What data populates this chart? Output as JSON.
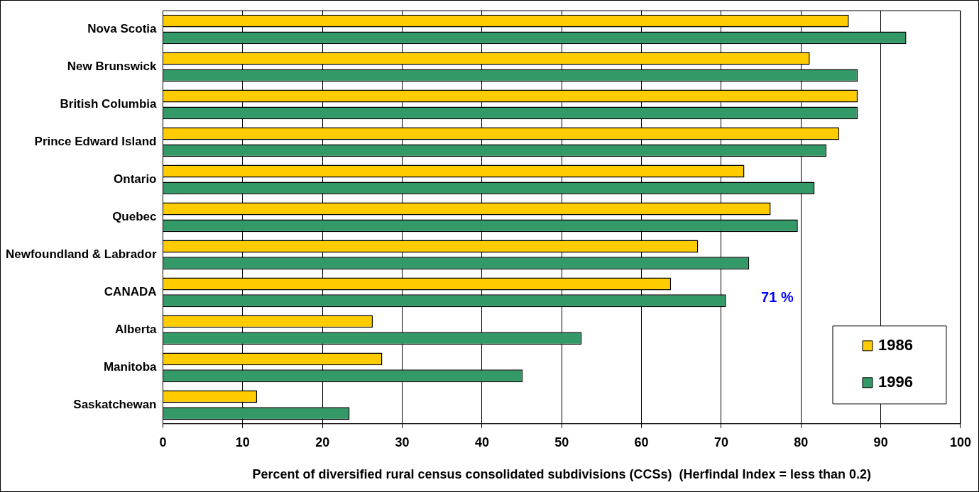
{
  "chart_data": {
    "type": "bar",
    "orientation": "horizontal",
    "xlabel": "Percent of diversified rural census consolidated subdivisions (CCSs)  (Herfindal Index = less than 0.2)",
    "categories": [
      "Nova Scotia",
      "New Brunswick",
      "British Columbia",
      "Prince Edward Island",
      "Ontario",
      "Quebec",
      "Newfoundland & Labrador",
      "CANADA",
      "Alberta",
      "Manitoba",
      "Saskatchewan"
    ],
    "series": [
      {
        "name": "1986",
        "color": "#ffcc00",
        "values": [
          86,
          81.1,
          87.1,
          84.8,
          72.9,
          76.2,
          67.1,
          63.7,
          26.3,
          27.5,
          11.8
        ]
      },
      {
        "name": "1996",
        "color": "#339966",
        "values": [
          93.2,
          87.1,
          87.1,
          83.2,
          81.7,
          79.6,
          73.5,
          70.6,
          52.5,
          45.1,
          23.4
        ]
      }
    ],
    "xlim": [
      0,
      100
    ],
    "xticks": [
      0,
      10,
      20,
      30,
      40,
      50,
      60,
      70,
      80,
      90,
      100
    ],
    "grid": "x",
    "legend": "bottom right",
    "annotations": [
      "71 %"
    ]
  }
}
